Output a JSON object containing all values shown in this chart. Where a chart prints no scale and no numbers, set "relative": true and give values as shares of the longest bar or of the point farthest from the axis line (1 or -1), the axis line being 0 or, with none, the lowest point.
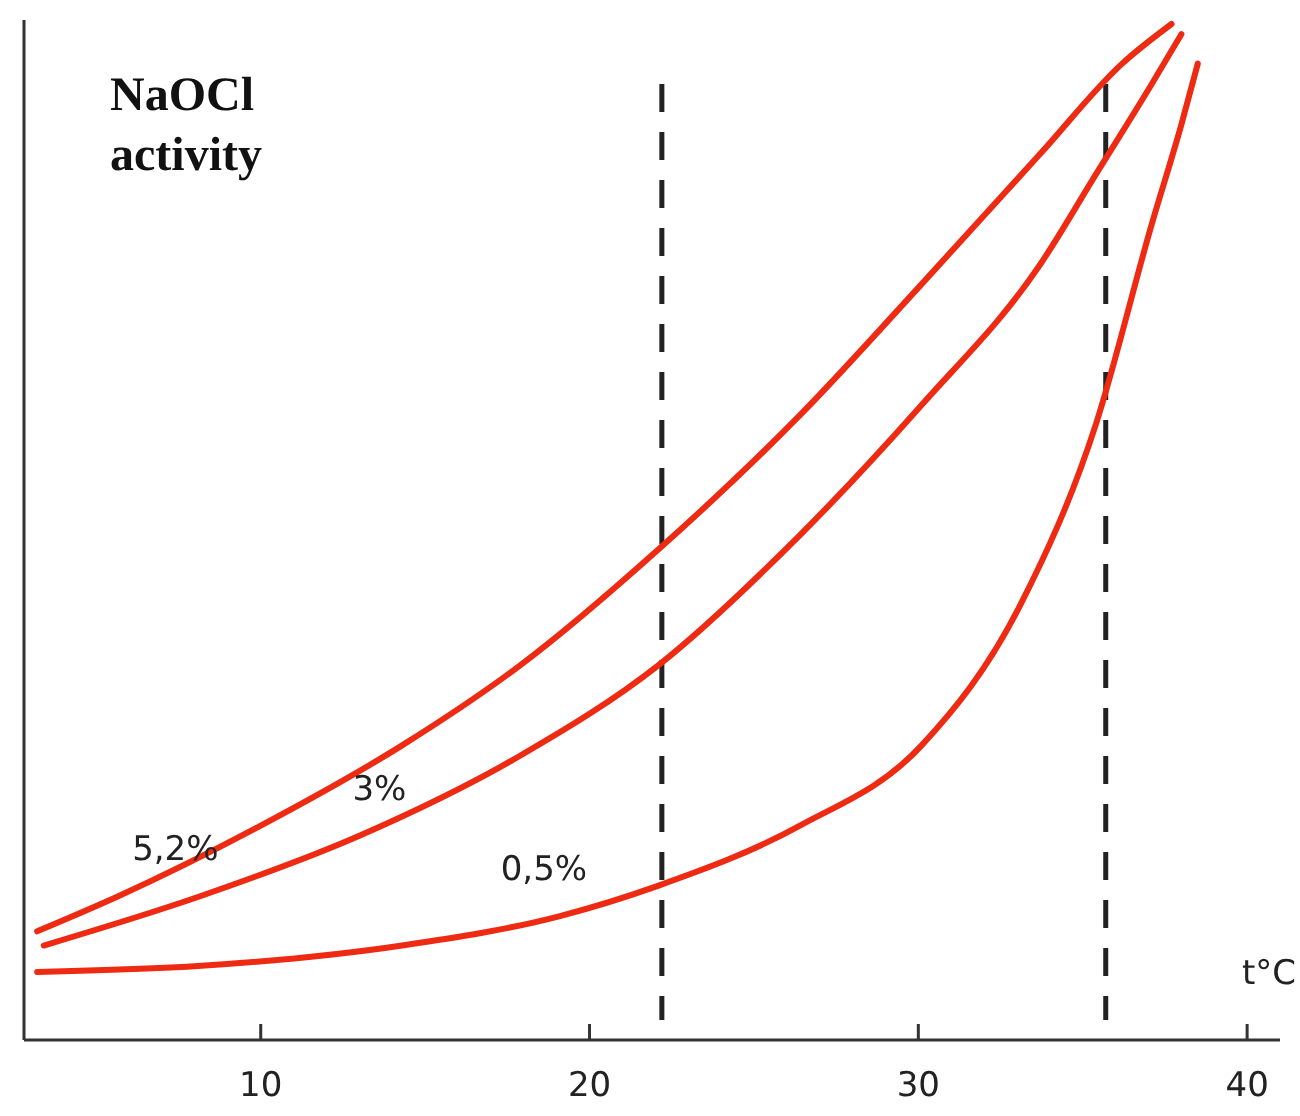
{
  "chart_data": {
    "type": "line",
    "relative": true,
    "ylabel": "NaOCl activity",
    "xlabel": "t°C",
    "xlim": [
      2.8,
      41
    ],
    "xticks": [
      10,
      20,
      30,
      40
    ],
    "line_style": "solid",
    "marker": "none",
    "grid": false,
    "series": [
      {
        "name": "5,2%",
        "color": "#ee2a12",
        "x": [
          3.2,
          5.7,
          10,
          14.3,
          17.9,
          22.1,
          26.4,
          30.1,
          33.7,
          36.2,
          37.7
        ],
        "values": [
          0.107,
          0.142,
          0.211,
          0.29,
          0.369,
          0.483,
          0.615,
          0.744,
          0.872,
          0.961,
          1
        ]
      },
      {
        "name": "3%",
        "color": "#ee2a12",
        "x": [
          3.4,
          8.2,
          13.0,
          17.9,
          22.1,
          26.4,
          30.1,
          33.7,
          35.4,
          37.1,
          38.0
        ],
        "values": [
          0.093,
          0.142,
          0.201,
          0.28,
          0.369,
          0.497,
          0.625,
          0.763,
          0.852,
          0.941,
          0.99
        ]
      },
      {
        "name": "0,5%",
        "color": "#ee2a12",
        "x": [
          3.2,
          8.2,
          14.3,
          19.1,
          22.1,
          26.4,
          30.1,
          33.1,
          35.4,
          37.1,
          38.0,
          38.5
        ],
        "values": [
          0.067,
          0.073,
          0.093,
          0.122,
          0.152,
          0.211,
          0.29,
          0.428,
          0.606,
          0.803,
          0.901,
          0.961
        ]
      }
    ],
    "ref_lines": [
      {
        "axis": "x",
        "value": 22.2,
        "color": "#222222",
        "line_style": "dashed"
      },
      {
        "axis": "x",
        "value": 35.7,
        "color": "#222222",
        "line_style": "dashed"
      }
    ]
  }
}
